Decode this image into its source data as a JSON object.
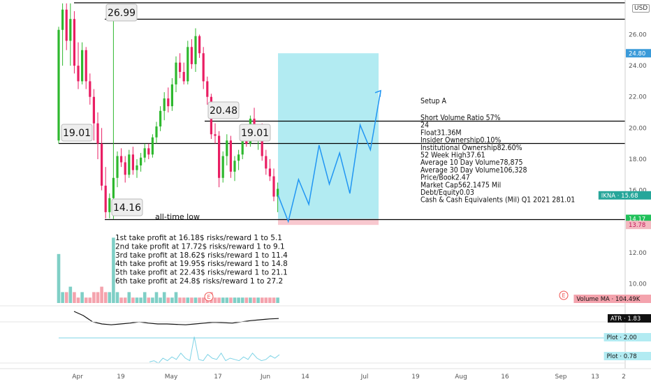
{
  "currency": "USD",
  "y_axis": {
    "min": 8.5,
    "max": 27.5,
    "ticks": [
      10,
      12,
      14,
      16,
      18,
      20,
      22,
      24,
      26
    ]
  },
  "x_axis": {
    "labels": [
      "Apr",
      "19",
      "May",
      "17",
      "Jun",
      "14",
      "Jul",
      "19",
      "Aug",
      "16",
      "Sep",
      "13",
      "2"
    ]
  },
  "price_labels": [
    {
      "text": "24.80",
      "value": 24.8,
      "bg": "#3a9ad9",
      "fg": "#ffffff"
    },
    {
      "text": "IKNA · 15.68",
      "value": 15.68,
      "bg": "#26a69a",
      "fg": "#ffffff"
    },
    {
      "text": "14.17",
      "value": 14.17,
      "bg": "#20c05a",
      "fg": "#ffffff"
    },
    {
      "text": "13.78",
      "value": 13.78,
      "bg": "#f3b9c0",
      "fg": "#c2185b"
    }
  ],
  "horizontal_levels": [
    26.99,
    20.48,
    19.01,
    14.16
  ],
  "top_line_value": 27.95,
  "annotations": [
    {
      "text": "26.99",
      "value": 26.99
    },
    {
      "text": "20.48",
      "value": 20.48
    },
    {
      "text": "19.01",
      "value": 19.01
    },
    {
      "text": "19.01",
      "value": 19.01
    },
    {
      "text": "14.16",
      "value": 14.16
    }
  ],
  "all_time_low_text": "all-time low",
  "setup": {
    "title": "Setup A",
    "lines": [
      "Short Volume Ratio 57%",
      "24",
      "Float31.36M",
      "Insider Ownership0.10%",
      "Institutional Ownership82.60%",
      "52 Week High37.61",
      "Average 10 Day Volume78,875",
      "Average 30 Day Volume106,328",
      "Price/Book2.47",
      "Market Cap562.1475 Mil",
      "Debt/Equity0.03",
      "Cash & Cash Equivalents (Mil) Q1 2021 281.01"
    ]
  },
  "take_profits": [
    "1st take profit at 16.18$ risks/reward 1 to 5.1",
    "2nd take profit at 17.72$ risks/reward 1 to 9.1",
    "3rd take profit at 18.62$ risks/reward 1 to 11.4",
    "4th take profit at 19.95$ risks/reward 1 to 14.8",
    "5th take profit at 22.43$ risks/reward 1 to 21.1",
    "6th take profit at 24.8$ risks/reward 1 to 27.2"
  ],
  "long_position": {
    "entry": 14.17,
    "target": 24.8,
    "stop": 13.78
  },
  "projection_path": [
    15.7,
    14.0,
    16.7,
    15.1,
    18.9,
    16.4,
    18.4,
    15.8,
    20.2,
    18.6,
    22.4
  ],
  "pane_labels": {
    "volume": "Volume MA · 104.49K",
    "atr": "ATR · 1.83",
    "plot1": "Plot · 2.00",
    "plot2": "Plot · 0.78"
  },
  "event_marker": "E",
  "colors": {
    "up": "#26a69a",
    "up_bar": "#2eb82e",
    "down": "#e91e63",
    "level": "#000000",
    "target_zone": "#b2ebf2",
    "stop_zone": "#f8c8cf",
    "projection": "#2196f3"
  },
  "chart_data": {
    "type": "candlestick",
    "ylim": [
      8.5,
      27.5
    ],
    "candles": [
      {
        "o": 19.2,
        "h": 26.5,
        "l": 19.0,
        "c": 26.3
      },
      {
        "o": 26.3,
        "h": 28.0,
        "l": 24.0,
        "c": 27.6
      },
      {
        "o": 27.6,
        "h": 28.0,
        "l": 25.0,
        "c": 25.6
      },
      {
        "o": 25.6,
        "h": 28.0,
        "l": 24.0,
        "c": 27.0
      },
      {
        "o": 27.0,
        "h": 27.5,
        "l": 23.5,
        "c": 24.0
      },
      {
        "o": 24.0,
        "h": 25.5,
        "l": 22.5,
        "c": 23.0
      },
      {
        "o": 23.0,
        "h": 25.5,
        "l": 22.8,
        "c": 25.0
      },
      {
        "o": 25.0,
        "h": 25.2,
        "l": 22.5,
        "c": 23.0
      },
      {
        "o": 23.0,
        "h": 23.5,
        "l": 21.5,
        "c": 22.0
      },
      {
        "o": 22.0,
        "h": 22.5,
        "l": 19.2,
        "c": 20.3
      },
      {
        "o": 20.3,
        "h": 21.0,
        "l": 18.0,
        "c": 19.0
      },
      {
        "o": 19.0,
        "h": 20.0,
        "l": 16.0,
        "c": 16.3
      },
      {
        "o": 16.3,
        "h": 17.5,
        "l": 14.2,
        "c": 14.6
      },
      {
        "o": 14.6,
        "h": 15.8,
        "l": 14.2,
        "c": 15.5
      },
      {
        "o": 15.5,
        "h": 27.0,
        "l": 14.16,
        "c": 16.8
      },
      {
        "o": 16.8,
        "h": 18.5,
        "l": 16.2,
        "c": 18.2
      },
      {
        "o": 18.2,
        "h": 18.7,
        "l": 17.5,
        "c": 17.8
      },
      {
        "o": 17.8,
        "h": 18.2,
        "l": 16.5,
        "c": 17.0
      },
      {
        "o": 17.0,
        "h": 18.6,
        "l": 16.8,
        "c": 18.3
      },
      {
        "o": 18.3,
        "h": 18.8,
        "l": 17.0,
        "c": 17.3
      },
      {
        "o": 17.3,
        "h": 18.0,
        "l": 16.8,
        "c": 17.6
      },
      {
        "o": 17.6,
        "h": 18.4,
        "l": 17.2,
        "c": 18.1
      },
      {
        "o": 18.1,
        "h": 19.0,
        "l": 17.8,
        "c": 18.7
      },
      {
        "o": 18.7,
        "h": 19.0,
        "l": 18.0,
        "c": 18.3
      },
      {
        "o": 18.3,
        "h": 19.6,
        "l": 18.1,
        "c": 19.4
      },
      {
        "o": 19.4,
        "h": 20.4,
        "l": 19.0,
        "c": 20.1
      },
      {
        "o": 20.1,
        "h": 21.4,
        "l": 19.8,
        "c": 21.1
      },
      {
        "o": 21.1,
        "h": 22.3,
        "l": 20.5,
        "c": 21.9
      },
      {
        "o": 21.9,
        "h": 22.6,
        "l": 21.0,
        "c": 21.4
      },
      {
        "o": 21.4,
        "h": 23.2,
        "l": 21.1,
        "c": 22.8
      },
      {
        "o": 22.8,
        "h": 24.6,
        "l": 22.3,
        "c": 24.2
      },
      {
        "o": 24.2,
        "h": 24.8,
        "l": 23.2,
        "c": 23.6
      },
      {
        "o": 23.6,
        "h": 24.2,
        "l": 22.8,
        "c": 23.0
      },
      {
        "o": 23.0,
        "h": 25.6,
        "l": 22.8,
        "c": 25.2
      },
      {
        "o": 25.2,
        "h": 25.7,
        "l": 23.8,
        "c": 24.1
      },
      {
        "o": 24.1,
        "h": 26.4,
        "l": 23.6,
        "c": 25.9
      },
      {
        "o": 25.9,
        "h": 26.0,
        "l": 24.5,
        "c": 24.8
      },
      {
        "o": 24.8,
        "h": 25.2,
        "l": 22.5,
        "c": 23.0
      },
      {
        "o": 23.0,
        "h": 23.3,
        "l": 21.5,
        "c": 22.0
      },
      {
        "o": 22.0,
        "h": 22.2,
        "l": 19.3,
        "c": 19.6
      },
      {
        "o": 19.6,
        "h": 20.3,
        "l": 19.0,
        "c": 19.5
      },
      {
        "o": 19.5,
        "h": 19.8,
        "l": 16.2,
        "c": 16.8
      },
      {
        "o": 16.8,
        "h": 18.5,
        "l": 16.5,
        "c": 18.2
      },
      {
        "o": 18.2,
        "h": 19.6,
        "l": 17.6,
        "c": 19.2
      },
      {
        "o": 19.2,
        "h": 19.5,
        "l": 16.8,
        "c": 17.2
      },
      {
        "o": 17.2,
        "h": 18.2,
        "l": 16.6,
        "c": 17.9
      },
      {
        "o": 17.9,
        "h": 18.6,
        "l": 17.3,
        "c": 18.3
      },
      {
        "o": 18.3,
        "h": 19.7,
        "l": 18.0,
        "c": 19.5
      },
      {
        "o": 19.5,
        "h": 20.1,
        "l": 18.8,
        "c": 19.0
      },
      {
        "o": 19.0,
        "h": 20.8,
        "l": 18.8,
        "c": 20.6
      },
      {
        "o": 20.6,
        "h": 21.3,
        "l": 19.4,
        "c": 19.6
      },
      {
        "o": 19.6,
        "h": 20.2,
        "l": 18.6,
        "c": 19.9
      },
      {
        "o": 19.9,
        "h": 20.3,
        "l": 17.9,
        "c": 18.2
      },
      {
        "o": 18.2,
        "h": 18.6,
        "l": 17.0,
        "c": 17.4
      },
      {
        "o": 17.4,
        "h": 18.0,
        "l": 16.6,
        "c": 16.9
      },
      {
        "o": 16.9,
        "h": 17.4,
        "l": 15.3,
        "c": 15.6
      },
      {
        "o": 15.6,
        "h": 16.5,
        "l": 14.6,
        "c": 16.1
      }
    ],
    "volume": [
      9,
      2,
      2,
      3,
      2,
      1,
      2,
      1,
      1,
      2,
      2,
      3,
      2,
      2,
      12,
      2,
      1,
      1,
      2,
      1,
      1,
      1,
      2,
      1,
      1,
      2,
      1,
      2,
      1,
      1,
      2,
      1,
      1,
      1,
      1,
      1,
      1,
      1,
      1,
      2,
      1,
      1,
      1,
      1,
      1,
      1,
      1,
      1,
      1,
      1,
      1,
      1,
      1,
      1,
      1,
      1,
      1
    ],
    "atr": [
      2.0,
      1.9,
      1.75,
      1.7,
      1.68,
      1.7,
      1.72,
      1.75,
      1.72,
      1.7,
      1.7,
      1.69,
      1.68,
      1.7,
      1.72,
      1.74,
      1.73,
      1.72,
      1.75,
      1.78,
      1.8,
      1.82,
      1.83
    ],
    "plot": [
      0.2,
      0.3,
      0.1,
      0.5,
      0.3,
      0.6,
      0.4,
      0.9,
      0.5,
      0.3,
      2.2,
      0.4,
      0.3,
      0.8,
      0.5,
      0.4,
      0.9,
      0.3,
      0.5,
      0.4,
      0.3,
      0.6,
      0.4,
      0.9,
      0.5,
      0.3,
      0.4,
      0.7,
      0.5,
      0.78
    ]
  }
}
